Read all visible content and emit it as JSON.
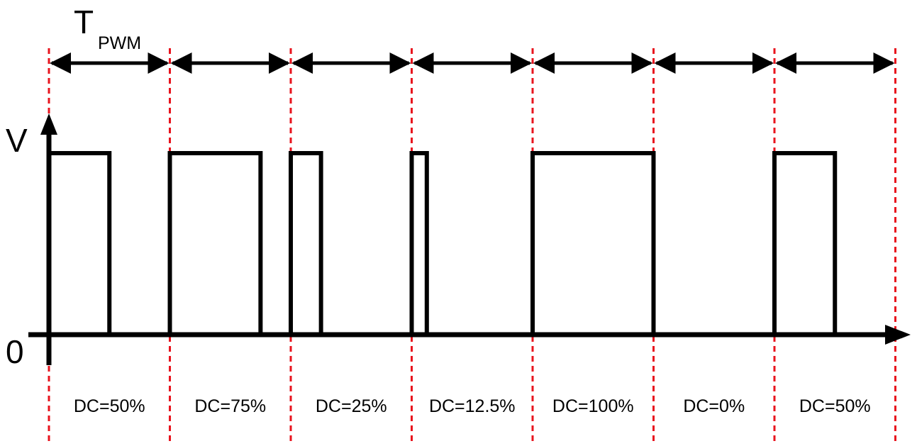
{
  "period_label": {
    "main": "T",
    "subscript": "PWM"
  },
  "y_axis": {
    "high_label": "V",
    "low_label": "0"
  },
  "duty_cycles": [
    {
      "label": "DC=50%",
      "fraction": 0.5
    },
    {
      "label": "DC=75%",
      "fraction": 0.75
    },
    {
      "label": "DC=25%",
      "fraction": 0.25
    },
    {
      "label": "DC=12.5%",
      "fraction": 0.125
    },
    {
      "label": "DC=100%",
      "fraction": 1.0
    },
    {
      "label": "DC=0%",
      "fraction": 0.0
    },
    {
      "label": "DC=50%",
      "fraction": 0.5
    }
  ],
  "colors": {
    "signal": "#000000",
    "period_marker": "#e8141e"
  }
}
